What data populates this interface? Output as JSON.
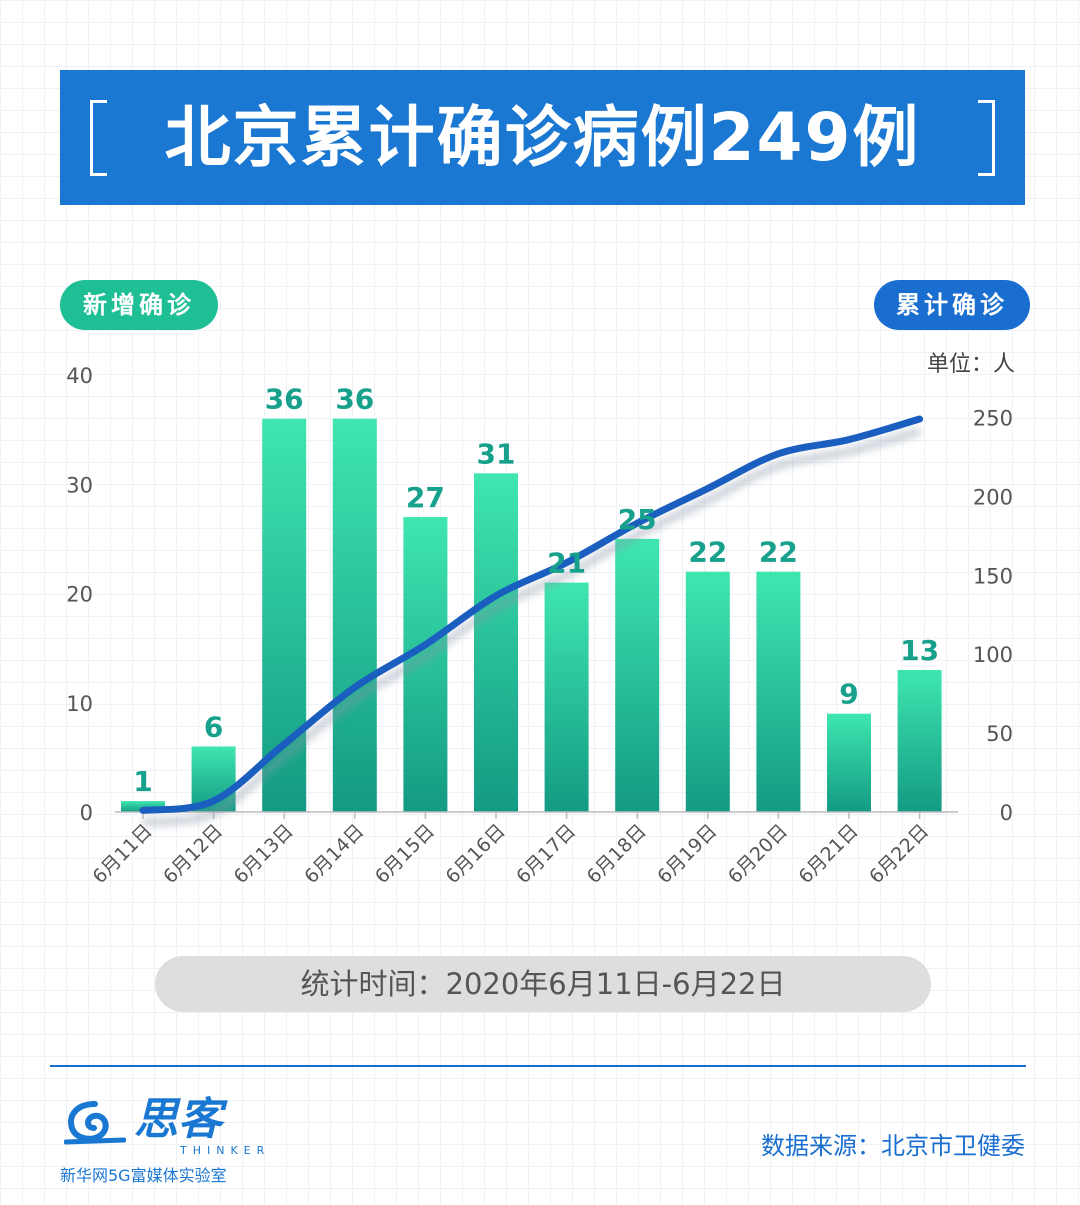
{
  "header": {
    "title": "北京累计确诊病例249例"
  },
  "legend": {
    "left_label": "新增确诊",
    "right_label": "累计确诊",
    "unit": "单位：人"
  },
  "chart_data": {
    "type": "bar",
    "categories": [
      "6月11日",
      "6月12日",
      "6月13日",
      "6月14日",
      "6月15日",
      "6月16日",
      "6月17日",
      "6月18日",
      "6月19日",
      "6月20日",
      "6月21日",
      "6月22日"
    ],
    "series": [
      {
        "name": "新增确诊",
        "type": "bar",
        "axis": "left",
        "values": [
          1,
          6,
          36,
          36,
          27,
          31,
          21,
          25,
          22,
          22,
          9,
          13
        ]
      },
      {
        "name": "累计确诊",
        "type": "line",
        "axis": "right",
        "values": [
          1,
          7,
          43,
          79,
          106,
          137,
          158,
          183,
          205,
          227,
          236,
          249
        ]
      }
    ],
    "left_axis": {
      "ylim": [
        0,
        40
      ],
      "ticks": [
        0,
        10,
        20,
        30,
        40
      ]
    },
    "right_axis": {
      "ylim": [
        0,
        275
      ],
      "ticks": [
        0,
        50,
        100,
        150,
        200,
        250
      ]
    },
    "colors": {
      "bar_top": "#3fe6b0",
      "bar_bottom": "#139a83",
      "bar_label": "#17a08c",
      "line": "#1a5fc0"
    }
  },
  "footer": {
    "period": "统计时间：2020年6月11日-6月22日",
    "logo_name": "思客",
    "logo_en": "THINKER",
    "logo_org": "新华网5G富媒体实验室",
    "source": "数据来源：北京市卫健委"
  }
}
